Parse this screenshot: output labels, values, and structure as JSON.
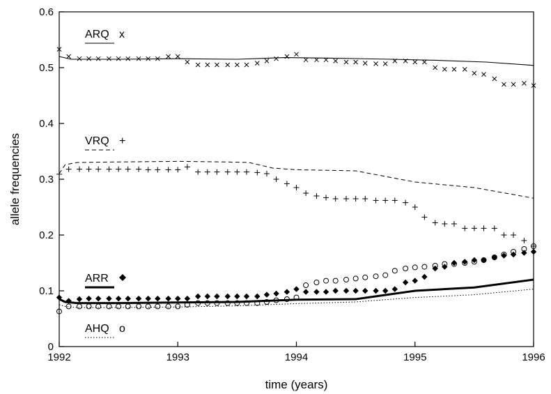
{
  "chart_data": {
    "type": "line",
    "xlabel": "time (years)",
    "ylabel": "allele frequencies",
    "xlim": [
      1992,
      1996
    ],
    "ylim": [
      0,
      0.6
    ],
    "x_ticks": [
      "1992",
      "1993",
      "1994",
      "1995",
      "1996"
    ],
    "y_ticks": [
      "0",
      "0.1",
      "0.2",
      "0.3",
      "0.4",
      "0.5",
      "0.6"
    ],
    "grid": false,
    "legend_placement": "inline-left",
    "series": [
      {
        "name": "ARQ",
        "marker_symbol": "x",
        "line_style": "solid-thin",
        "line": {
          "x": [
            1992,
            1992.1,
            1992.5,
            1993,
            1993.5,
            1993.9,
            1994.3,
            1994.8,
            1995.2,
            1995.6,
            1996
          ],
          "y": [
            0.52,
            0.515,
            0.515,
            0.516,
            0.515,
            0.518,
            0.517,
            0.515,
            0.513,
            0.51,
            0.504
          ]
        },
        "points": {
          "x": [
            1992,
            1992.08,
            1992.17,
            1992.25,
            1992.33,
            1992.42,
            1992.5,
            1992.58,
            1992.67,
            1992.75,
            1992.83,
            1992.92,
            1993,
            1993.08,
            1993.17,
            1993.25,
            1993.33,
            1993.42,
            1993.5,
            1993.58,
            1993.67,
            1993.75,
            1993.83,
            1993.92,
            1994,
            1994.08,
            1994.17,
            1994.25,
            1994.33,
            1994.42,
            1994.5,
            1994.58,
            1994.67,
            1994.75,
            1994.83,
            1994.92,
            1995,
            1995.08,
            1995.17,
            1995.25,
            1995.33,
            1995.42,
            1995.5,
            1995.58,
            1995.67,
            1995.75,
            1995.83,
            1995.92,
            1996
          ],
          "y": [
            0.533,
            0.52,
            0.516,
            0.516,
            0.516,
            0.516,
            0.516,
            0.516,
            0.516,
            0.516,
            0.516,
            0.52,
            0.52,
            0.51,
            0.505,
            0.505,
            0.505,
            0.505,
            0.505,
            0.505,
            0.508,
            0.512,
            0.516,
            0.52,
            0.524,
            0.514,
            0.514,
            0.514,
            0.512,
            0.51,
            0.51,
            0.508,
            0.507,
            0.507,
            0.512,
            0.512,
            0.51,
            0.51,
            0.5,
            0.497,
            0.497,
            0.497,
            0.49,
            0.488,
            0.48,
            0.47,
            0.47,
            0.472,
            0.468
          ]
        }
      },
      {
        "name": "VRQ",
        "marker_symbol": "+",
        "line_style": "dashed",
        "line": {
          "x": [
            1992,
            1992.05,
            1992.15,
            1992.5,
            1993,
            1993.4,
            1993.6,
            1993.8,
            1994,
            1994.5,
            1995,
            1995.5,
            1996
          ],
          "y": [
            0.31,
            0.326,
            0.33,
            0.331,
            0.332,
            0.331,
            0.33,
            0.32,
            0.317,
            0.315,
            0.295,
            0.285,
            0.266
          ]
        },
        "points": {
          "x": [
            1992,
            1992.08,
            1992.17,
            1992.25,
            1992.33,
            1992.42,
            1992.5,
            1992.58,
            1992.67,
            1992.75,
            1992.83,
            1992.92,
            1993,
            1993.08,
            1993.17,
            1993.25,
            1993.33,
            1993.42,
            1993.5,
            1993.58,
            1993.67,
            1993.75,
            1993.83,
            1993.92,
            1994,
            1994.08,
            1994.17,
            1994.25,
            1994.33,
            1994.42,
            1994.5,
            1994.58,
            1994.67,
            1994.75,
            1994.83,
            1994.92,
            1995,
            1995.08,
            1995.17,
            1995.25,
            1995.33,
            1995.42,
            1995.5,
            1995.58,
            1995.67,
            1995.75,
            1995.83,
            1995.92,
            1996
          ],
          "y": [
            0.309,
            0.318,
            0.318,
            0.318,
            0.318,
            0.318,
            0.318,
            0.318,
            0.318,
            0.317,
            0.317,
            0.317,
            0.317,
            0.322,
            0.313,
            0.313,
            0.313,
            0.313,
            0.313,
            0.313,
            0.312,
            0.31,
            0.3,
            0.292,
            0.285,
            0.275,
            0.27,
            0.267,
            0.265,
            0.265,
            0.265,
            0.265,
            0.262,
            0.262,
            0.262,
            0.258,
            0.25,
            0.232,
            0.222,
            0.22,
            0.22,
            0.212,
            0.212,
            0.212,
            0.212,
            0.2,
            0.2,
            0.19,
            0.18
          ]
        }
      },
      {
        "name": "ARR",
        "marker_symbol": "◆",
        "line_style": "solid-thick",
        "line": {
          "x": [
            1992,
            1992.05,
            1992.15,
            1992.5,
            1993,
            1993.5,
            1994,
            1994.5,
            1995,
            1995.5,
            1996
          ],
          "y": [
            0.085,
            0.08,
            0.078,
            0.078,
            0.079,
            0.08,
            0.084,
            0.085,
            0.1,
            0.106,
            0.12
          ]
        },
        "points": {
          "x": [
            1992,
            1992.08,
            1992.17,
            1992.25,
            1992.33,
            1992.42,
            1992.5,
            1992.58,
            1992.67,
            1992.75,
            1992.83,
            1992.92,
            1993,
            1993.08,
            1993.17,
            1993.25,
            1993.33,
            1993.42,
            1993.5,
            1993.58,
            1993.67,
            1993.75,
            1993.83,
            1993.92,
            1994,
            1994.08,
            1994.17,
            1994.25,
            1994.33,
            1994.42,
            1994.5,
            1994.58,
            1994.67,
            1994.75,
            1994.83,
            1994.92,
            1995,
            1995.08,
            1995.17,
            1995.25,
            1995.33,
            1995.42,
            1995.5,
            1995.58,
            1995.67,
            1995.75,
            1995.83,
            1995.92,
            1996
          ],
          "y": [
            0.088,
            0.082,
            0.085,
            0.086,
            0.086,
            0.086,
            0.086,
            0.086,
            0.086,
            0.086,
            0.086,
            0.086,
            0.086,
            0.086,
            0.09,
            0.09,
            0.09,
            0.09,
            0.09,
            0.09,
            0.09,
            0.093,
            0.095,
            0.098,
            0.103,
            0.098,
            0.098,
            0.098,
            0.1,
            0.1,
            0.1,
            0.1,
            0.1,
            0.1,
            0.103,
            0.115,
            0.118,
            0.125,
            0.14,
            0.143,
            0.15,
            0.152,
            0.155,
            0.155,
            0.16,
            0.163,
            0.165,
            0.168,
            0.17
          ]
        }
      },
      {
        "name": "AHQ",
        "marker_symbol": "o",
        "line_style": "dotted",
        "line": {
          "x": [
            1992,
            1992.05,
            1992.15,
            1992.5,
            1993,
            1993.5,
            1994,
            1994.5,
            1995,
            1995.5,
            1996
          ],
          "y": [
            0.075,
            0.072,
            0.07,
            0.07,
            0.071,
            0.073,
            0.077,
            0.08,
            0.088,
            0.093,
            0.103
          ]
        },
        "points": {
          "x": [
            1992,
            1992.08,
            1992.17,
            1992.25,
            1992.33,
            1992.42,
            1992.5,
            1992.58,
            1992.67,
            1992.75,
            1992.83,
            1992.92,
            1993,
            1993.08,
            1993.17,
            1993.25,
            1993.33,
            1993.42,
            1993.5,
            1993.58,
            1993.67,
            1993.75,
            1993.83,
            1993.92,
            1994,
            1994.08,
            1994.17,
            1994.25,
            1994.33,
            1994.42,
            1994.5,
            1994.58,
            1994.67,
            1994.75,
            1994.83,
            1994.92,
            1995,
            1995.08,
            1995.17,
            1995.25,
            1995.33,
            1995.42,
            1995.5,
            1995.58,
            1995.67,
            1995.75,
            1995.83,
            1995.92,
            1996
          ],
          "y": [
            0.063,
            0.072,
            0.072,
            0.072,
            0.072,
            0.072,
            0.072,
            0.072,
            0.072,
            0.072,
            0.072,
            0.072,
            0.072,
            0.075,
            0.078,
            0.078,
            0.078,
            0.078,
            0.078,
            0.078,
            0.078,
            0.08,
            0.083,
            0.085,
            0.088,
            0.11,
            0.115,
            0.118,
            0.118,
            0.12,
            0.122,
            0.124,
            0.126,
            0.128,
            0.136,
            0.14,
            0.142,
            0.143,
            0.145,
            0.148,
            0.148,
            0.15,
            0.152,
            0.155,
            0.16,
            0.165,
            0.17,
            0.175,
            0.18
          ]
        }
      }
    ]
  }
}
